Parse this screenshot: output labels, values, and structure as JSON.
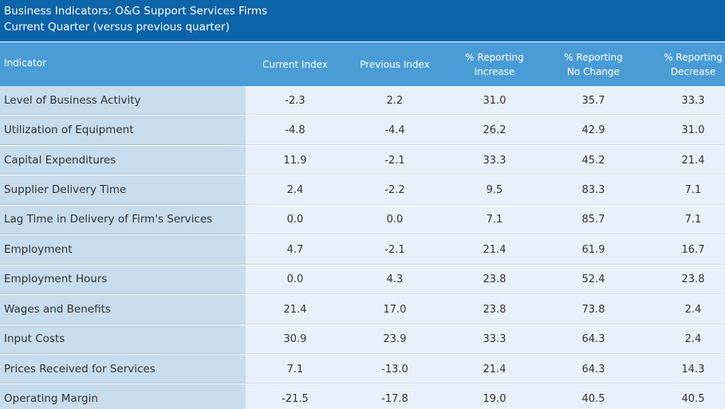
{
  "title": {
    "line1": "Business Indicators: O&G Support Services Firms",
    "line2": "Current Quarter (versus previous quarter)"
  },
  "columns": [
    "Indicator",
    "Current Index",
    "Previous Index",
    "% Reporting\nIncrease",
    "% Reporting\nNo Change",
    "% Reporting\nDecrease"
  ],
  "rows": [
    {
      "indicator": "Level of Business Activity",
      "current": "-2.3",
      "previous": "2.2",
      "increase": "31.0",
      "no_change": "35.7",
      "decrease": "33.3"
    },
    {
      "indicator": "Utilization of Equipment",
      "current": "-4.8",
      "previous": "-4.4",
      "increase": "26.2",
      "no_change": "42.9",
      "decrease": "31.0"
    },
    {
      "indicator": "Capital Expenditures",
      "current": "11.9",
      "previous": "-2.1",
      "increase": "33.3",
      "no_change": "45.2",
      "decrease": "21.4"
    },
    {
      "indicator": "Supplier Delivery Time",
      "current": "2.4",
      "previous": "-2.2",
      "increase": "9.5",
      "no_change": "83.3",
      "decrease": "7.1"
    },
    {
      "indicator": "Lag Time in Delivery of Firm's Services",
      "current": "0.0",
      "previous": "0.0",
      "increase": "7.1",
      "no_change": "85.7",
      "decrease": "7.1"
    },
    {
      "indicator": "Employment",
      "current": "4.7",
      "previous": "-2.1",
      "increase": "21.4",
      "no_change": "61.9",
      "decrease": "16.7"
    },
    {
      "indicator": "Employment Hours",
      "current": "0.0",
      "previous": "4.3",
      "increase": "23.8",
      "no_change": "52.4",
      "decrease": "23.8"
    },
    {
      "indicator": "Wages and Benefits",
      "current": "21.4",
      "previous": "17.0",
      "increase": "23.8",
      "no_change": "73.8",
      "decrease": "2.4"
    },
    {
      "indicator": "Input Costs",
      "current": "30.9",
      "previous": "23.9",
      "increase": "33.3",
      "no_change": "64.3",
      "decrease": "2.4"
    },
    {
      "indicator": "Prices Received for Services",
      "current": "7.1",
      "previous": "-13.0",
      "increase": "21.4",
      "no_change": "64.3",
      "decrease": "14.3"
    },
    {
      "indicator": "Operating Margin",
      "current": "-21.5",
      "previous": "-17.8",
      "increase": "19.0",
      "no_change": "40.5",
      "decrease": "40.5"
    }
  ],
  "colors": {
    "title_bg": "#0b63a8",
    "header_bg": "#4a9cd6",
    "indicator_bg": "#c7dcec",
    "data_bg": "#e8f1f9"
  }
}
